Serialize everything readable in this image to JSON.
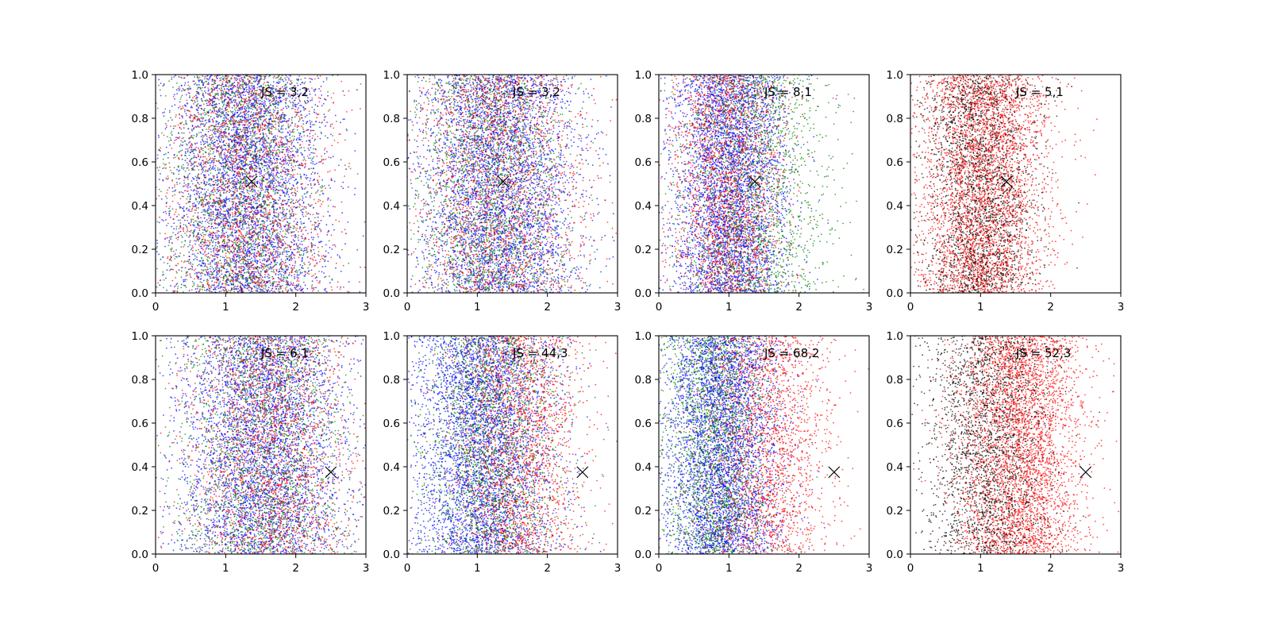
{
  "chart_data": [
    {
      "type": "scatter",
      "row": 0,
      "col": 0,
      "annotation": "JS = 3,2",
      "xlim": [
        0,
        3
      ],
      "ylim": [
        0,
        1
      ],
      "xticks": [
        "0",
        "1",
        "2",
        "3"
      ],
      "yticks": [
        "0.0",
        "0.2",
        "0.4",
        "0.6",
        "0.8",
        "1.0"
      ],
      "marker": {
        "x": 1.37,
        "y": 0.51
      },
      "series": [
        {
          "color": "#0000ff",
          "points": 4000,
          "x_center": 1.3,
          "x_spread": 0.55
        },
        {
          "color": "#008000",
          "points": 2000,
          "x_center": 1.2,
          "x_spread": 0.55
        },
        {
          "color": "#ff0000",
          "points": 2000,
          "x_center": 1.3,
          "x_spread": 0.6
        }
      ]
    },
    {
      "type": "scatter",
      "row": 0,
      "col": 1,
      "annotation": "JS = 3,2",
      "xlim": [
        0,
        3
      ],
      "ylim": [
        0,
        1
      ],
      "xticks": [
        "0",
        "1",
        "2",
        "3"
      ],
      "yticks": [
        "0.0",
        "0.2",
        "0.4",
        "0.6",
        "0.8",
        "1.0"
      ],
      "marker": {
        "x": 1.37,
        "y": 0.51
      },
      "series": [
        {
          "color": "#0000ff",
          "points": 4000,
          "x_center": 1.3,
          "x_spread": 0.55
        },
        {
          "color": "#008000",
          "points": 2000,
          "x_center": 1.25,
          "x_spread": 0.55
        },
        {
          "color": "#ff0000",
          "points": 2000,
          "x_center": 1.3,
          "x_spread": 0.6
        }
      ]
    },
    {
      "type": "scatter",
      "row": 0,
      "col": 2,
      "annotation": "JS = 8,1",
      "xlim": [
        0,
        3
      ],
      "ylim": [
        0,
        1
      ],
      "xticks": [
        "0",
        "1",
        "2",
        "3"
      ],
      "yticks": [
        "0.0",
        "0.2",
        "0.4",
        "0.6",
        "0.8",
        "1.0"
      ],
      "marker": {
        "x": 1.37,
        "y": 0.51
      },
      "series": [
        {
          "color": "#0000ff",
          "points": 4000,
          "x_center": 1.0,
          "x_spread": 0.4
        },
        {
          "color": "#008000",
          "points": 2000,
          "x_center": 1.3,
          "x_spread": 0.55
        },
        {
          "color": "#ff0000",
          "points": 2000,
          "x_center": 1.0,
          "x_spread": 0.4
        }
      ]
    },
    {
      "type": "scatter",
      "row": 0,
      "col": 3,
      "annotation": "JS = 5,1",
      "xlim": [
        0,
        3
      ],
      "ylim": [
        0,
        1
      ],
      "xticks": [
        "0",
        "1",
        "2",
        "3"
      ],
      "yticks": [
        "0.0",
        "0.2",
        "0.4",
        "0.6",
        "0.8",
        "1.0"
      ],
      "marker": {
        "x": 1.37,
        "y": 0.51
      },
      "series": [
        {
          "color": "#ff0000",
          "points": 4000,
          "x_center": 1.05,
          "x_spread": 0.45
        },
        {
          "color": "#000000",
          "points": 2000,
          "x_center": 0.95,
          "x_spread": 0.4
        }
      ]
    },
    {
      "type": "scatter",
      "row": 1,
      "col": 0,
      "annotation": "JS = 6,1",
      "xlim": [
        0,
        3
      ],
      "ylim": [
        0,
        1
      ],
      "xticks": [
        "0",
        "1",
        "2",
        "3"
      ],
      "yticks": [
        "0.0",
        "0.2",
        "0.4",
        "0.6",
        "0.8",
        "1.0"
      ],
      "marker": {
        "x": 2.5,
        "y": 0.375
      },
      "series": [
        {
          "color": "#0000ff",
          "points": 4000,
          "x_center": 1.55,
          "x_spread": 0.6
        },
        {
          "color": "#008000",
          "points": 2000,
          "x_center": 1.55,
          "x_spread": 0.6
        },
        {
          "color": "#ff0000",
          "points": 2000,
          "x_center": 1.65,
          "x_spread": 0.6
        }
      ]
    },
    {
      "type": "scatter",
      "row": 1,
      "col": 1,
      "annotation": "JS = 44,3",
      "xlim": [
        0,
        3
      ],
      "ylim": [
        0,
        1
      ],
      "xticks": [
        "0",
        "1",
        "2",
        "3"
      ],
      "yticks": [
        "0.0",
        "0.2",
        "0.4",
        "0.6",
        "0.8",
        "1.0"
      ],
      "marker": {
        "x": 2.5,
        "y": 0.375
      },
      "series": [
        {
          "color": "#0000ff",
          "points": 4000,
          "x_center": 1.1,
          "x_spread": 0.5
        },
        {
          "color": "#008000",
          "points": 2000,
          "x_center": 1.2,
          "x_spread": 0.5
        },
        {
          "color": "#ff0000",
          "points": 2000,
          "x_center": 1.6,
          "x_spread": 0.45
        }
      ]
    },
    {
      "type": "scatter",
      "row": 1,
      "col": 2,
      "annotation": "JS = 68,2",
      "xlim": [
        0,
        3
      ],
      "ylim": [
        0,
        1
      ],
      "xticks": [
        "0",
        "1",
        "2",
        "3"
      ],
      "yticks": [
        "0.0",
        "0.2",
        "0.4",
        "0.6",
        "0.8",
        "1.0"
      ],
      "marker": {
        "x": 2.5,
        "y": 0.375
      },
      "series": [
        {
          "color": "#0000ff",
          "points": 4000,
          "x_center": 0.9,
          "x_spread": 0.4
        },
        {
          "color": "#008000",
          "points": 2000,
          "x_center": 0.8,
          "x_spread": 0.4
        },
        {
          "color": "#ff0000",
          "points": 2000,
          "x_center": 1.55,
          "x_spread": 0.45
        }
      ]
    },
    {
      "type": "scatter",
      "row": 1,
      "col": 3,
      "annotation": "JS = 52,3",
      "xlim": [
        0,
        3
      ],
      "ylim": [
        0,
        1
      ],
      "xticks": [
        "0",
        "1",
        "2",
        "3"
      ],
      "yticks": [
        "0.0",
        "0.2",
        "0.4",
        "0.6",
        "0.8",
        "1.0"
      ],
      "marker": {
        "x": 2.5,
        "y": 0.375
      },
      "series": [
        {
          "color": "#ff0000",
          "points": 4000,
          "x_center": 1.55,
          "x_spread": 0.45
        },
        {
          "color": "#000000",
          "points": 2000,
          "x_center": 1.05,
          "x_spread": 0.45
        }
      ]
    }
  ]
}
